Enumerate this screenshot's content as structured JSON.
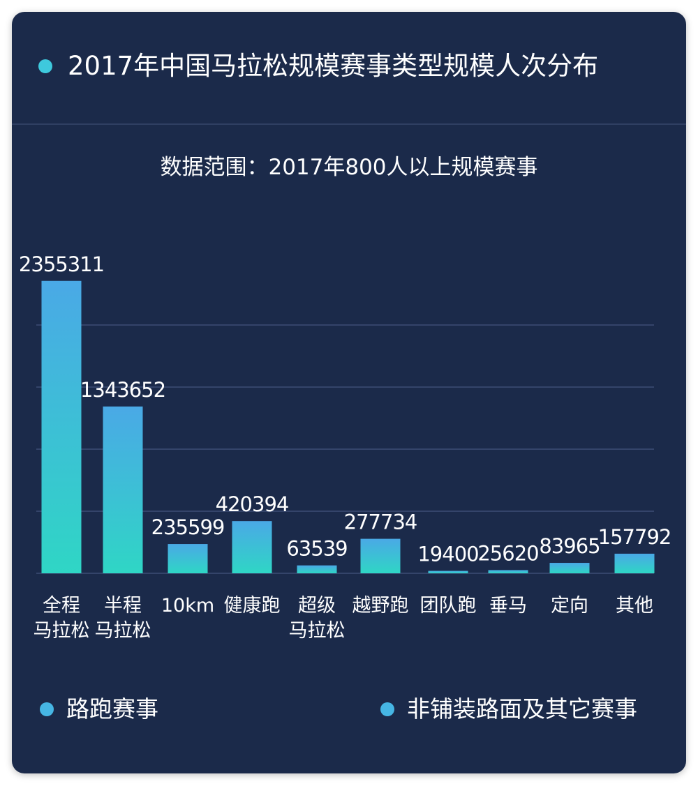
{
  "header": {
    "title": "2017年中国马拉松规模赛事类型规模人次分布"
  },
  "colors": {
    "background": "#1b2a4a",
    "accent": "#3ec9dd",
    "bar_top": "#4aa9e6",
    "bar_bottom": "#2fd6c5",
    "gridline": "#34446a",
    "legend_road": "#46b6e4",
    "legend_offroad": "#46b6e4"
  },
  "legend": {
    "items": [
      {
        "label": "路跑赛事",
        "color": "#46b6e4"
      },
      {
        "label": "非铺装路面及其它赛事",
        "color": "#46b6e4"
      }
    ]
  },
  "chart_data": {
    "type": "bar",
    "title": "2017年中国马拉松规模赛事类型规模人次分布",
    "subtitle": "数据范围：2017年800人以上规模赛事",
    "xlabel": "",
    "ylabel": "",
    "grid": true,
    "legend_placement": "bottom",
    "ylim": [
      0,
      2500000
    ],
    "categories": [
      [
        "全程",
        "马拉松"
      ],
      [
        "半程",
        "马拉松"
      ],
      [
        "10km"
      ],
      [
        "健康跑"
      ],
      [
        "超级",
        "马拉松"
      ],
      [
        "越野跑"
      ],
      [
        "团队跑"
      ],
      [
        "垂马"
      ],
      [
        "定向"
      ],
      [
        "其他"
      ]
    ],
    "values": [
      2355311,
      1343652,
      235599,
      420394,
      63539,
      277734,
      19400,
      25620,
      83965,
      157792
    ],
    "value_labels": [
      "2355311",
      "1343652",
      "235599",
      "420394",
      "63539",
      "277734",
      "19400",
      "25620",
      "83965",
      "157792"
    ]
  }
}
